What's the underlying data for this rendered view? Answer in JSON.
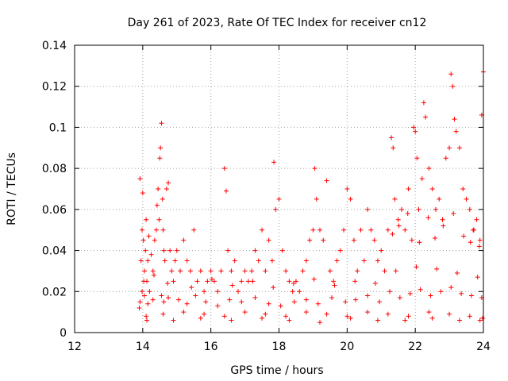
{
  "chart_data": {
    "type": "scatter",
    "title": "Day 261 of 2023, Rate Of TEC Index for receiver cn12",
    "xlabel": "GPS time / hours",
    "ylabel": "ROTI / TECUs",
    "xlim": [
      12,
      24
    ],
    "ylim": [
      0,
      0.14
    ],
    "xticks": [
      "12",
      "14",
      "16",
      "18",
      "20",
      "22",
      "24"
    ],
    "yticks": [
      "0",
      "0.02",
      "0.04",
      "0.06",
      "0.08",
      "0.1",
      "0.12",
      "0.14"
    ],
    "grid": true,
    "marker": "+",
    "color": "#ff0000",
    "series": [
      {
        "name": "ROTI",
        "x": [
          13.9,
          13.92,
          13.95,
          13.98,
          14.0,
          14.02,
          14.05,
          14.08,
          14.1,
          14.12,
          14.15,
          14.18,
          14.2,
          14.25,
          14.3,
          14.35,
          14.4,
          14.42,
          14.45,
          14.48,
          14.5,
          14.52,
          14.55,
          14.58,
          14.6,
          14.62,
          14.65,
          14.7,
          14.75,
          14.8,
          14.85,
          14.9,
          14.95,
          15.0,
          15.1,
          15.2,
          15.3,
          15.4,
          15.5,
          15.6,
          15.7,
          15.8,
          15.9,
          16.0,
          16.1,
          16.2,
          16.3,
          16.4,
          16.45,
          16.5,
          16.6,
          16.7,
          16.8,
          16.9,
          17.0,
          17.1,
          17.2,
          17.3,
          17.4,
          17.5,
          17.6,
          17.7,
          17.8,
          17.85,
          17.9,
          18.0,
          18.1,
          18.2,
          18.3,
          18.4,
          18.5,
          18.6,
          18.7,
          18.8,
          18.9,
          19.0,
          19.05,
          19.1,
          19.2,
          19.3,
          19.4,
          19.5,
          19.6,
          19.7,
          19.8,
          19.9,
          20.0,
          20.1,
          20.2,
          20.3,
          20.4,
          20.5,
          20.6,
          20.7,
          20.8,
          20.9,
          21.0,
          21.1,
          21.2,
          21.3,
          21.35,
          21.4,
          21.5,
          21.6,
          21.7,
          21.8,
          21.9,
          21.95,
          22.0,
          22.05,
          22.1,
          22.2,
          22.25,
          22.3,
          22.4,
          22.5,
          22.6,
          22.7,
          22.8,
          22.9,
          23.0,
          23.05,
          23.1,
          23.15,
          23.2,
          23.3,
          23.4,
          23.5,
          23.6,
          23.7,
          23.8,
          23.9,
          23.95,
          24.0,
          13.92,
          13.98,
          14.05,
          14.15,
          14.3,
          14.55,
          14.62,
          14.75,
          15.05,
          15.3,
          15.55,
          15.85,
          16.2,
          16.55,
          16.9,
          17.3,
          17.7,
          18.05,
          18.45,
          18.8,
          19.15,
          19.55,
          19.95,
          20.25,
          20.6,
          20.95,
          21.25,
          21.55,
          21.85,
          22.15,
          22.45,
          22.75,
          23.05,
          23.35,
          23.65,
          23.95,
          14.1,
          14.6,
          15.2,
          15.8,
          16.4,
          17.0,
          17.6,
          18.2,
          18.8,
          19.4,
          20.0,
          20.6,
          21.2,
          21.8,
          22.4,
          23.0,
          23.6,
          23.98,
          14.03,
          14.33,
          14.73,
          15.43,
          16.03,
          16.63,
          17.23,
          17.83,
          18.43,
          19.03,
          19.63,
          20.23,
          20.83,
          21.43,
          22.03,
          22.63,
          23.23,
          23.83,
          14.12,
          14.9,
          15.7,
          16.6,
          17.5,
          18.3,
          19.2,
          20.1,
          20.9,
          21.7,
          22.5,
          23.3,
          23.9,
          21.33,
          21.52,
          21.78,
          22.12,
          22.38,
          22.58,
          22.82,
          23.12,
          23.42,
          23.62,
          23.72,
          23.88
        ],
        "y": [
          0.012,
          0.075,
          0.035,
          0.05,
          0.068,
          0.045,
          0.03,
          0.04,
          0.055,
          0.025,
          0.035,
          0.047,
          0.02,
          0.038,
          0.03,
          0.045,
          0.05,
          0.062,
          0.07,
          0.055,
          0.085,
          0.09,
          0.102,
          0.065,
          0.05,
          0.04,
          0.035,
          0.07,
          0.073,
          0.04,
          0.03,
          0.025,
          0.035,
          0.04,
          0.03,
          0.045,
          0.035,
          0.03,
          0.05,
          0.025,
          0.03,
          0.02,
          0.025,
          0.03,
          0.025,
          0.02,
          0.03,
          0.08,
          0.069,
          0.04,
          0.03,
          0.035,
          0.02,
          0.025,
          0.03,
          0.025,
          0.03,
          0.04,
          0.035,
          0.05,
          0.03,
          0.045,
          0.035,
          0.083,
          0.06,
          0.065,
          0.04,
          0.03,
          0.025,
          0.02,
          0.025,
          0.02,
          0.03,
          0.035,
          0.045,
          0.05,
          0.08,
          0.065,
          0.05,
          0.045,
          0.074,
          0.03,
          0.025,
          0.035,
          0.04,
          0.05,
          0.07,
          0.065,
          0.045,
          0.03,
          0.05,
          0.035,
          0.06,
          0.05,
          0.045,
          0.035,
          0.04,
          0.03,
          0.05,
          0.095,
          0.09,
          0.065,
          0.055,
          0.06,
          0.05,
          0.07,
          0.045,
          0.1,
          0.098,
          0.085,
          0.06,
          0.075,
          0.112,
          0.105,
          0.08,
          0.07,
          0.06,
          0.065,
          0.055,
          0.085,
          0.09,
          0.126,
          0.12,
          0.104,
          0.098,
          0.09,
          0.07,
          0.065,
          0.06,
          0.05,
          0.055,
          0.045,
          0.106,
          0.127,
          0.015,
          0.02,
          0.018,
          0.014,
          0.016,
          0.018,
          0.015,
          0.017,
          0.016,
          0.014,
          0.018,
          0.015,
          0.013,
          0.016,
          0.015,
          0.017,
          0.014,
          0.013,
          0.015,
          0.016,
          0.014,
          0.017,
          0.015,
          0.016,
          0.018,
          0.015,
          0.02,
          0.017,
          0.019,
          0.021,
          0.018,
          0.02,
          0.022,
          0.019,
          0.018,
          0.017,
          0.008,
          0.009,
          0.01,
          0.009,
          0.008,
          0.01,
          0.009,
          0.008,
          0.01,
          0.009,
          0.008,
          0.01,
          0.009,
          0.008,
          0.01,
          0.009,
          0.008,
          0.007,
          0.025,
          0.028,
          0.024,
          0.022,
          0.026,
          0.023,
          0.025,
          0.022,
          0.024,
          0.026,
          0.023,
          0.025,
          0.024,
          0.03,
          0.032,
          0.031,
          0.029,
          0.027,
          0.006,
          0.006,
          0.007,
          0.006,
          0.007,
          0.006,
          0.005,
          0.007,
          0.006,
          0.006,
          0.007,
          0.006,
          0.006,
          0.048,
          0.052,
          0.058,
          0.044,
          0.056,
          0.046,
          0.052,
          0.058,
          0.047,
          0.044,
          0.05,
          0.042
        ]
      }
    ]
  }
}
